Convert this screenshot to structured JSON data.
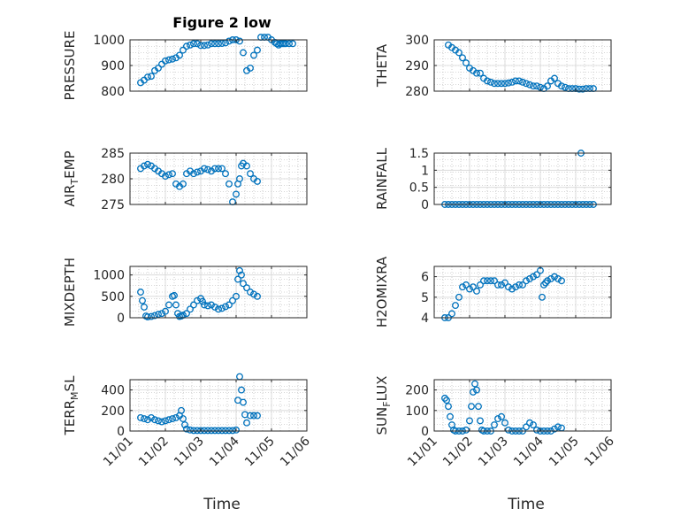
{
  "figure_title": "Figure 2 low",
  "colors": {
    "marker": "#0072BD",
    "axis": "#262626",
    "grid": "#b0b0b0",
    "background": "#ffffff"
  },
  "chart_data": [
    {
      "id": "pressure",
      "type": "scatter",
      "ylabel": "PRESSURE",
      "title": "Figure 2 low",
      "xlim": [
        0,
        5
      ],
      "ylim": [
        800,
        1000
      ],
      "yticks": [
        800,
        900,
        1000
      ],
      "grid": true,
      "x": [
        0.3,
        0.4,
        0.5,
        0.6,
        0.7,
        0.8,
        0.9,
        1.0,
        1.1,
        1.2,
        1.3,
        1.4,
        1.5,
        1.6,
        1.7,
        1.8,
        1.9,
        2.0,
        2.1,
        2.2,
        2.3,
        2.4,
        2.5,
        2.6,
        2.7,
        2.8,
        2.9,
        3.0,
        3.1,
        3.2,
        3.3,
        3.4,
        3.5,
        3.6,
        3.7,
        3.8,
        3.9,
        4.0,
        4.1,
        4.15,
        4.2,
        4.25,
        4.3,
        4.35,
        4.4,
        4.5,
        4.6
      ],
      "y": [
        833,
        843,
        855,
        858,
        880,
        890,
        905,
        918,
        922,
        925,
        930,
        940,
        960,
        975,
        980,
        985,
        985,
        978,
        978,
        980,
        985,
        985,
        985,
        986,
        988,
        995,
        1000,
        1000,
        995,
        950,
        880,
        890,
        940,
        960,
        1010,
        1010,
        1010,
        1000,
        990,
        985,
        980,
        985,
        985,
        985,
        985,
        985,
        985
      ]
    },
    {
      "id": "theta",
      "type": "scatter",
      "ylabel": "THETA",
      "xlim": [
        0,
        5
      ],
      "ylim": [
        280,
        300
      ],
      "yticks": [
        280,
        290,
        300
      ],
      "grid": true,
      "x": [
        0.4,
        0.5,
        0.6,
        0.7,
        0.8,
        0.9,
        1.0,
        1.1,
        1.2,
        1.3,
        1.4,
        1.5,
        1.6,
        1.7,
        1.8,
        1.9,
        2.0,
        2.1,
        2.2,
        2.3,
        2.4,
        2.5,
        2.6,
        2.7,
        2.8,
        2.9,
        3.0,
        3.1,
        3.2,
        3.3,
        3.4,
        3.5,
        3.6,
        3.7,
        3.8,
        3.9,
        4.0,
        4.1,
        4.2,
        4.3,
        4.4,
        4.5
      ],
      "y": [
        298,
        297,
        296,
        295,
        293,
        291,
        289,
        288,
        287,
        287,
        285,
        284,
        283.5,
        283,
        283,
        283,
        283,
        283.2,
        283.5,
        284,
        284,
        283.5,
        283,
        282.5,
        282,
        282,
        281.5,
        281,
        282,
        284,
        285,
        283,
        282,
        281.5,
        281,
        281,
        281,
        280.8,
        280.8,
        281,
        281,
        281
      ]
    },
    {
      "id": "air_temp",
      "type": "scatter",
      "ylabel": "AIR_TEMP",
      "xlim": [
        0,
        5
      ],
      "ylim": [
        275,
        285
      ],
      "yticks": [
        275,
        280,
        285
      ],
      "grid": true,
      "x": [
        0.3,
        0.4,
        0.5,
        0.6,
        0.7,
        0.8,
        0.9,
        1.0,
        1.1,
        1.2,
        1.3,
        1.4,
        1.5,
        1.6,
        1.7,
        1.8,
        1.9,
        2.0,
        2.1,
        2.2,
        2.3,
        2.4,
        2.5,
        2.6,
        2.7,
        2.8,
        2.9,
        3.0,
        3.05,
        3.1,
        3.15,
        3.2,
        3.3,
        3.4,
        3.5,
        3.6
      ],
      "y": [
        282,
        282.5,
        282.8,
        282.5,
        282,
        281.5,
        281,
        280.5,
        280.8,
        281,
        279,
        278.5,
        279,
        281,
        281.5,
        281,
        281.3,
        281.5,
        282,
        281.8,
        281.5,
        282,
        282,
        282,
        281,
        279,
        275.5,
        277,
        279,
        280,
        282.5,
        283,
        282.5,
        281,
        280,
        279.5
      ]
    },
    {
      "id": "rainfall",
      "type": "scatter",
      "ylabel": "RAINFALL",
      "xlim": [
        0,
        5
      ],
      "ylim": [
        0,
        1.5
      ],
      "yticks": [
        0,
        0.5,
        1,
        1.5
      ],
      "grid": true,
      "x": [
        0.3,
        0.4,
        0.5,
        0.6,
        0.7,
        0.8,
        0.9,
        1.0,
        1.1,
        1.2,
        1.3,
        1.4,
        1.5,
        1.6,
        1.7,
        1.8,
        1.9,
        2.0,
        2.1,
        2.2,
        2.3,
        2.4,
        2.5,
        2.6,
        2.7,
        2.8,
        2.9,
        3.0,
        3.1,
        3.2,
        3.3,
        3.4,
        3.5,
        3.6,
        3.7,
        3.8,
        3.9,
        4.0,
        4.1,
        4.15,
        4.2,
        4.3,
        4.4,
        4.5
      ],
      "y": [
        0,
        0,
        0,
        0,
        0,
        0,
        0,
        0,
        0,
        0,
        0,
        0,
        0,
        0,
        0,
        0,
        0,
        0,
        0,
        0,
        0,
        0,
        0,
        0,
        0,
        0,
        0,
        0,
        0,
        0,
        0,
        0,
        0,
        0,
        0,
        0,
        0,
        0,
        0,
        1.5,
        0,
        0,
        0,
        0
      ]
    },
    {
      "id": "mixdepth",
      "type": "scatter",
      "ylabel": "MIXDEPTH",
      "xlim": [
        0,
        5
      ],
      "ylim": [
        0,
        1200
      ],
      "yticks": [
        0,
        500,
        1000
      ],
      "grid": true,
      "x": [
        0.3,
        0.35,
        0.4,
        0.45,
        0.5,
        0.6,
        0.7,
        0.8,
        0.9,
        1.0,
        1.1,
        1.2,
        1.25,
        1.3,
        1.35,
        1.4,
        1.45,
        1.5,
        1.6,
        1.7,
        1.8,
        1.9,
        2.0,
        2.05,
        2.1,
        2.2,
        2.3,
        2.4,
        2.5,
        2.6,
        2.7,
        2.8,
        2.9,
        3.0,
        3.05,
        3.1,
        3.15,
        3.2,
        3.3,
        3.4,
        3.5,
        3.6
      ],
      "y": [
        600,
        400,
        250,
        40,
        20,
        30,
        50,
        80,
        100,
        150,
        300,
        500,
        520,
        300,
        100,
        30,
        40,
        60,
        100,
        200,
        300,
        400,
        450,
        380,
        300,
        280,
        300,
        250,
        200,
        220,
        260,
        300,
        400,
        500,
        900,
        1100,
        1000,
        800,
        700,
        600,
        550,
        500
      ]
    },
    {
      "id": "h2omixra",
      "type": "scatter",
      "ylabel": "H2OMIXRA",
      "xlim": [
        0,
        5
      ],
      "ylim": [
        4,
        6.5
      ],
      "yticks": [
        4,
        5,
        6
      ],
      "grid": true,
      "x": [
        0.3,
        0.4,
        0.5,
        0.6,
        0.7,
        0.8,
        0.9,
        1.0,
        1.1,
        1.2,
        1.3,
        1.4,
        1.5,
        1.6,
        1.7,
        1.8,
        1.9,
        2.0,
        2.1,
        2.2,
        2.3,
        2.4,
        2.5,
        2.6,
        2.7,
        2.8,
        2.9,
        3.0,
        3.05,
        3.1,
        3.15,
        3.2,
        3.3,
        3.4,
        3.5,
        3.6
      ],
      "y": [
        4,
        4,
        4.2,
        4.6,
        5.0,
        5.5,
        5.6,
        5.4,
        5.5,
        5.3,
        5.6,
        5.8,
        5.8,
        5.8,
        5.8,
        5.6,
        5.6,
        5.7,
        5.5,
        5.4,
        5.5,
        5.6,
        5.6,
        5.8,
        5.9,
        6.0,
        6.1,
        6.3,
        5.0,
        5.6,
        5.7,
        5.8,
        5.9,
        6.0,
        5.9,
        5.8
      ]
    },
    {
      "id": "terr_msl",
      "type": "scatter",
      "ylabel": "TERR_MSL",
      "xlim": [
        0,
        5
      ],
      "ylim": [
        0,
        500
      ],
      "yticks": [
        0,
        200,
        400
      ],
      "grid": true,
      "x": [
        0.3,
        0.4,
        0.5,
        0.6,
        0.7,
        0.8,
        0.9,
        1.0,
        1.1,
        1.2,
        1.3,
        1.4,
        1.45,
        1.5,
        1.55,
        1.6,
        1.7,
        1.8,
        1.9,
        2.0,
        2.1,
        2.2,
        2.3,
        2.4,
        2.5,
        2.6,
        2.7,
        2.8,
        2.9,
        3.0,
        3.05,
        3.1,
        3.15,
        3.2,
        3.25,
        3.3,
        3.4,
        3.5,
        3.6
      ],
      "y": [
        130,
        120,
        110,
        130,
        110,
        100,
        90,
        100,
        110,
        120,
        130,
        150,
        200,
        120,
        60,
        20,
        10,
        5,
        5,
        5,
        5,
        5,
        5,
        5,
        5,
        5,
        5,
        5,
        5,
        10,
        300,
        530,
        400,
        280,
        160,
        80,
        150,
        150,
        150
      ]
    },
    {
      "id": "sun_flux",
      "type": "scatter",
      "ylabel": "SUN_FLUX",
      "xlim": [
        0,
        5
      ],
      "ylim": [
        0,
        250
      ],
      "yticks": [
        0,
        100,
        200
      ],
      "grid": true,
      "x": [
        0.3,
        0.35,
        0.4,
        0.45,
        0.5,
        0.55,
        0.6,
        0.7,
        0.8,
        0.9,
        1.0,
        1.05,
        1.1,
        1.15,
        1.2,
        1.25,
        1.3,
        1.35,
        1.4,
        1.5,
        1.6,
        1.7,
        1.8,
        1.9,
        2.0,
        2.1,
        2.2,
        2.3,
        2.4,
        2.5,
        2.6,
        2.7,
        2.8,
        2.9,
        3.0,
        3.1,
        3.2,
        3.3,
        3.4,
        3.5,
        3.6
      ],
      "y": [
        160,
        150,
        120,
        70,
        30,
        5,
        0,
        0,
        0,
        5,
        50,
        120,
        190,
        230,
        200,
        120,
        50,
        5,
        0,
        0,
        0,
        30,
        60,
        70,
        40,
        5,
        0,
        0,
        0,
        0,
        20,
        40,
        30,
        5,
        0,
        0,
        0,
        0,
        10,
        20,
        15
      ]
    }
  ],
  "x_axis": {
    "ticks": [
      0,
      1,
      2,
      3,
      4,
      5
    ],
    "ticklabels": [
      "11/01",
      "11/02",
      "11/03",
      "11/04",
      "11/05",
      "11/06"
    ],
    "xlabel": "Time"
  }
}
